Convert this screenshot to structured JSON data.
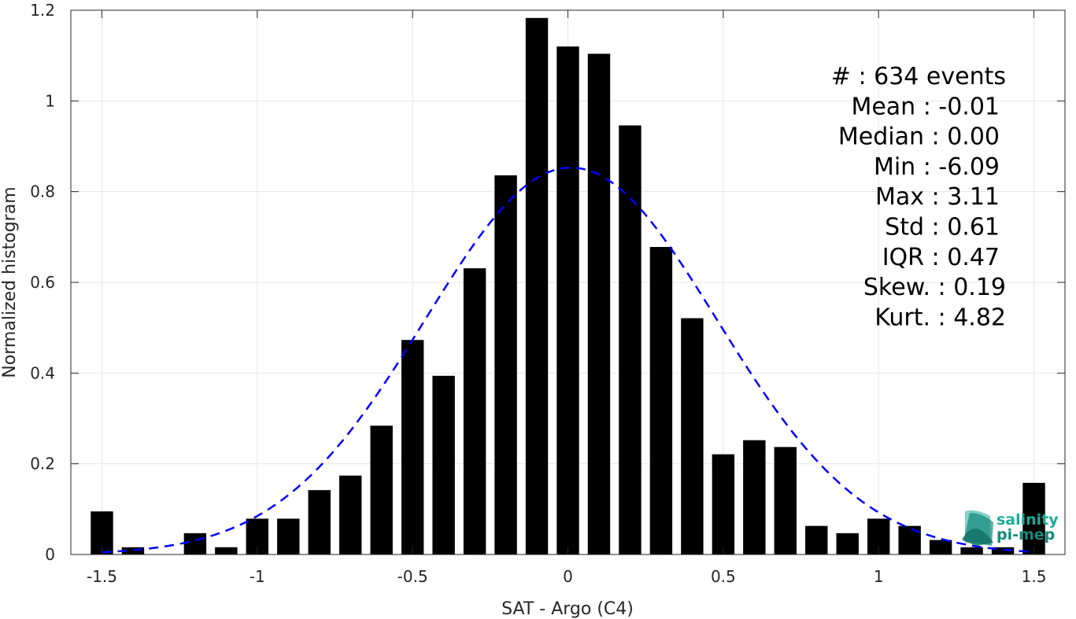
{
  "chart_data": {
    "type": "bar",
    "xlabel": "SAT - Argo (C4)",
    "ylabel": "Normalized histogram",
    "xlim": [
      -1.6,
      1.6
    ],
    "ylim": [
      0,
      1.2
    ],
    "xticks": [
      -1.5,
      -1,
      -0.5,
      0,
      0.5,
      1,
      1.5
    ],
    "xtick_labels": [
      "-1.5",
      "-1",
      "-0.5",
      "0",
      "0.5",
      "1",
      "1.5"
    ],
    "yticks": [
      0,
      0.2,
      0.4,
      0.6,
      0.8,
      1,
      1.2
    ],
    "ytick_labels": [
      "0",
      "0.2",
      "0.4",
      "0.6",
      "0.8",
      "1",
      "1.2"
    ],
    "grid": true,
    "bin_width": 0.1,
    "bins": [
      {
        "x": -1.5,
        "y": 0.095
      },
      {
        "x": -1.4,
        "y": 0.016
      },
      {
        "x": -1.3,
        "y": 0.0
      },
      {
        "x": -1.2,
        "y": 0.047
      },
      {
        "x": -1.1,
        "y": 0.016
      },
      {
        "x": -1.0,
        "y": 0.079
      },
      {
        "x": -0.9,
        "y": 0.079
      },
      {
        "x": -0.8,
        "y": 0.142
      },
      {
        "x": -0.7,
        "y": 0.174
      },
      {
        "x": -0.6,
        "y": 0.284
      },
      {
        "x": -0.5,
        "y": 0.473
      },
      {
        "x": -0.4,
        "y": 0.394
      },
      {
        "x": -0.3,
        "y": 0.631
      },
      {
        "x": -0.2,
        "y": 0.836
      },
      {
        "x": -0.1,
        "y": 1.183
      },
      {
        "x": 0.0,
        "y": 1.12
      },
      {
        "x": 0.1,
        "y": 1.104
      },
      {
        "x": 0.2,
        "y": 0.946
      },
      {
        "x": 0.3,
        "y": 0.678
      },
      {
        "x": 0.4,
        "y": 0.521
      },
      {
        "x": 0.5,
        "y": 0.221
      },
      {
        "x": 0.6,
        "y": 0.252
      },
      {
        "x": 0.7,
        "y": 0.237
      },
      {
        "x": 0.8,
        "y": 0.063
      },
      {
        "x": 0.9,
        "y": 0.047
      },
      {
        "x": 1.0,
        "y": 0.079
      },
      {
        "x": 1.1,
        "y": 0.063
      },
      {
        "x": 1.2,
        "y": 0.032
      },
      {
        "x": 1.3,
        "y": 0.016
      },
      {
        "x": 1.4,
        "y": 0.016
      },
      {
        "x": 1.5,
        "y": 0.158
      }
    ],
    "fit_curve": {
      "style": "dashed",
      "color": "#0000ff",
      "kind": "gaussian",
      "mean": 0.01,
      "sigma": 0.47,
      "peak": 0.853,
      "x_range": [
        -1.5,
        1.5
      ]
    },
    "bar_color": "#000000"
  },
  "stats": [
    {
      "label": "#  ",
      "value": "634 events"
    },
    {
      "label": "Mean",
      "value": "-0.01"
    },
    {
      "label": "Median",
      "value": "0.00"
    },
    {
      "label": "Min",
      "value": "-6.09"
    },
    {
      "label": "Max",
      "value": "3.11"
    },
    {
      "label": "Std",
      "value": "0.61"
    },
    {
      "label": "IQR",
      "value": "0.47"
    },
    {
      "label": "Skew.",
      "value": "0.19"
    },
    {
      "label": "Kurt.",
      "value": "4.82"
    }
  ],
  "logo": {
    "line1": "salinity",
    "line2": "pi-mep",
    "color": "#1aab9b"
  }
}
